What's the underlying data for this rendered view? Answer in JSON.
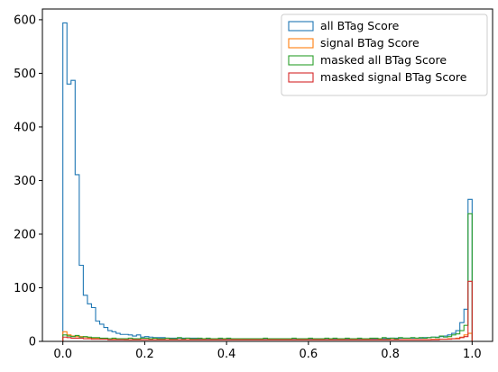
{
  "chart_data": {
    "type": "histogram-step",
    "xlim": [
      -0.05,
      1.05
    ],
    "ylim": [
      0,
      620
    ],
    "x_ticks": [
      0.0,
      0.2,
      0.4,
      0.6,
      0.8,
      1.0
    ],
    "x_tick_labels": [
      "0.0",
      "0.2",
      "0.4",
      "0.6",
      "0.8",
      "1.0"
    ],
    "y_ticks": [
      0,
      100,
      200,
      300,
      400,
      500,
      600
    ],
    "y_tick_labels": [
      "0",
      "100",
      "200",
      "300",
      "400",
      "500",
      "600"
    ],
    "legend_position": "top-right",
    "bins": {
      "start": 0.0,
      "end": 1.0,
      "count": 100
    },
    "series": [
      {
        "name": "all BTag Score",
        "color": "#1f77b4",
        "values": [
          594,
          480,
          487,
          311,
          142,
          86,
          70,
          63,
          38,
          32,
          26,
          20,
          18,
          15,
          13,
          13,
          12,
          10,
          12,
          8,
          9,
          8,
          7,
          7,
          7,
          6,
          6,
          6,
          6,
          6,
          6,
          6,
          6,
          5,
          5,
          5,
          5,
          5,
          5,
          5,
          5,
          5,
          5,
          5,
          4,
          4,
          4,
          4,
          4,
          4,
          4,
          4,
          4,
          4,
          4,
          4,
          4,
          4,
          4,
          4,
          5,
          4,
          4,
          4,
          4,
          4,
          5,
          5,
          5,
          5,
          5,
          5,
          5,
          5,
          5,
          5,
          5,
          5,
          5,
          6,
          6,
          6,
          6,
          6,
          6,
          6,
          6,
          6,
          7,
          7,
          8,
          8,
          9,
          10,
          12,
          15,
          20,
          35,
          60,
          265
        ]
      },
      {
        "name": "signal BTag Score",
        "color": "#ff7f0e",
        "values": [
          18,
          12,
          10,
          9,
          9,
          8,
          7,
          6,
          6,
          5,
          5,
          4,
          4,
          4,
          4,
          3,
          3,
          3,
          3,
          3,
          3,
          3,
          3,
          3,
          3,
          3,
          3,
          3,
          3,
          3,
          3,
          3,
          3,
          3,
          3,
          3,
          3,
          3,
          3,
          3,
          3,
          3,
          3,
          3,
          3,
          3,
          3,
          3,
          3,
          3,
          3,
          3,
          3,
          3,
          3,
          3,
          3,
          3,
          3,
          3,
          3,
          3,
          3,
          3,
          3,
          3,
          3,
          3,
          3,
          3,
          3,
          3,
          3,
          3,
          3,
          3,
          3,
          3,
          3,
          3,
          3,
          3,
          3,
          3,
          3,
          3,
          3,
          3,
          3,
          3,
          4,
          4,
          4,
          4,
          5,
          5,
          6,
          8,
          12,
          15
        ]
      },
      {
        "name": "masked all BTag Score",
        "color": "#2ca02c",
        "values": [
          12,
          10,
          9,
          11,
          8,
          9,
          8,
          7,
          7,
          6,
          6,
          5,
          6,
          5,
          5,
          5,
          6,
          5,
          5,
          6,
          6,
          5,
          6,
          5,
          5,
          6,
          5,
          5,
          7,
          5,
          6,
          5,
          5,
          6,
          5,
          6,
          5,
          5,
          6,
          5,
          6,
          5,
          5,
          5,
          5,
          5,
          5,
          5,
          5,
          6,
          5,
          5,
          5,
          5,
          5,
          5,
          6,
          5,
          5,
          5,
          6,
          5,
          5,
          5,
          6,
          5,
          6,
          5,
          5,
          6,
          5,
          5,
          6,
          5,
          5,
          6,
          6,
          5,
          7,
          5,
          6,
          5,
          7,
          6,
          6,
          7,
          6,
          7,
          6,
          7,
          8,
          7,
          10,
          8,
          9,
          12,
          14,
          20,
          30,
          238
        ]
      },
      {
        "name": "masked signal BTag Score",
        "color": "#d62728",
        "values": [
          8,
          7,
          6,
          6,
          6,
          5,
          5,
          4,
          4,
          4,
          4,
          3,
          3,
          3,
          3,
          3,
          3,
          3,
          3,
          3,
          3,
          3,
          3,
          3,
          3,
          3,
          3,
          3,
          3,
          3,
          3,
          3,
          3,
          3,
          3,
          3,
          3,
          3,
          3,
          3,
          3,
          3,
          3,
          3,
          3,
          3,
          3,
          3,
          3,
          3,
          3,
          3,
          3,
          3,
          3,
          3,
          3,
          3,
          3,
          3,
          3,
          3,
          3,
          3,
          3,
          3,
          3,
          3,
          3,
          3,
          3,
          3,
          3,
          3,
          3,
          3,
          3,
          3,
          3,
          3,
          3,
          3,
          3,
          3,
          3,
          3,
          3,
          3,
          3,
          3,
          3,
          3,
          4,
          4,
          4,
          5,
          5,
          7,
          9,
          112
        ]
      }
    ]
  }
}
